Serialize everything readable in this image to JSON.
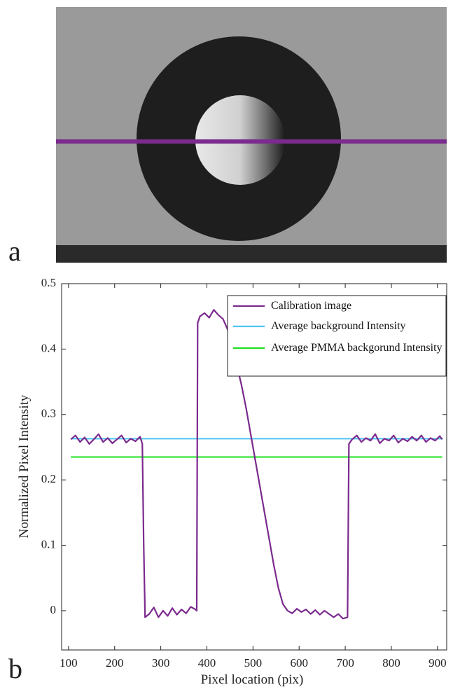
{
  "image": {
    "label": "a"
  },
  "chart_data": {
    "type": "line",
    "panel_label": "b",
    "xlabel": "Pixel location (pix)",
    "ylabel": "Normalized Pixel Intensity",
    "xlim": [
      85,
      920
    ],
    "ylim": [
      -0.06,
      0.5
    ],
    "xticks": [
      100,
      200,
      300,
      400,
      500,
      600,
      700,
      800,
      900
    ],
    "yticks": [
      0,
      0.1,
      0.2,
      0.3,
      0.4,
      0.5
    ],
    "legend": "upper right",
    "series": [
      {
        "name": "Calibration image",
        "color": "#7b2a8e",
        "x": [
          105,
          115,
          125,
          135,
          145,
          155,
          165,
          175,
          185,
          195,
          205,
          215,
          225,
          235,
          245,
          255,
          260,
          263,
          266,
          275,
          285,
          295,
          305,
          315,
          325,
          335,
          345,
          355,
          365,
          375,
          378,
          380,
          385,
          395,
          405,
          415,
          425,
          435,
          445,
          455,
          465,
          475,
          485,
          495,
          505,
          515,
          525,
          535,
          545,
          555,
          565,
          575,
          585,
          595,
          605,
          615,
          625,
          635,
          645,
          655,
          665,
          675,
          685,
          695,
          705,
          708,
          715,
          725,
          735,
          745,
          755,
          765,
          775,
          785,
          795,
          805,
          815,
          825,
          835,
          845,
          855,
          865,
          875,
          885,
          895,
          905,
          910
        ],
        "values": [
          0.262,
          0.268,
          0.258,
          0.265,
          0.255,
          0.262,
          0.27,
          0.258,
          0.264,
          0.256,
          0.262,
          0.268,
          0.257,
          0.263,
          0.259,
          0.266,
          0.255,
          0.1,
          -0.01,
          -0.005,
          0.005,
          -0.01,
          0.0,
          -0.008,
          0.004,
          -0.006,
          0.002,
          -0.004,
          0.006,
          0.002,
          0.0,
          0.44,
          0.45,
          0.455,
          0.448,
          0.46,
          0.452,
          0.446,
          0.43,
          0.405,
          0.375,
          0.345,
          0.31,
          0.27,
          0.23,
          0.19,
          0.15,
          0.11,
          0.07,
          0.035,
          0.01,
          0.0,
          -0.004,
          0.003,
          -0.002,
          0.002,
          -0.005,
          0.001,
          -0.006,
          0.0,
          -0.005,
          -0.01,
          -0.005,
          -0.012,
          -0.01,
          0.255,
          0.262,
          0.268,
          0.258,
          0.264,
          0.26,
          0.27,
          0.256,
          0.263,
          0.26,
          0.268,
          0.257,
          0.263,
          0.259,
          0.266,
          0.26,
          0.268,
          0.258,
          0.264,
          0.26,
          0.267,
          0.262
        ]
      },
      {
        "name": "Average background Intensity",
        "color": "#4fc3f0",
        "x": [
          105,
          912
        ],
        "values": [
          0.263,
          0.263
        ]
      },
      {
        "name": "Average PMMA backgorund Intensity",
        "color": "#1ee01e",
        "x": [
          105,
          910
        ],
        "values": [
          0.235,
          0.235
        ]
      }
    ]
  }
}
